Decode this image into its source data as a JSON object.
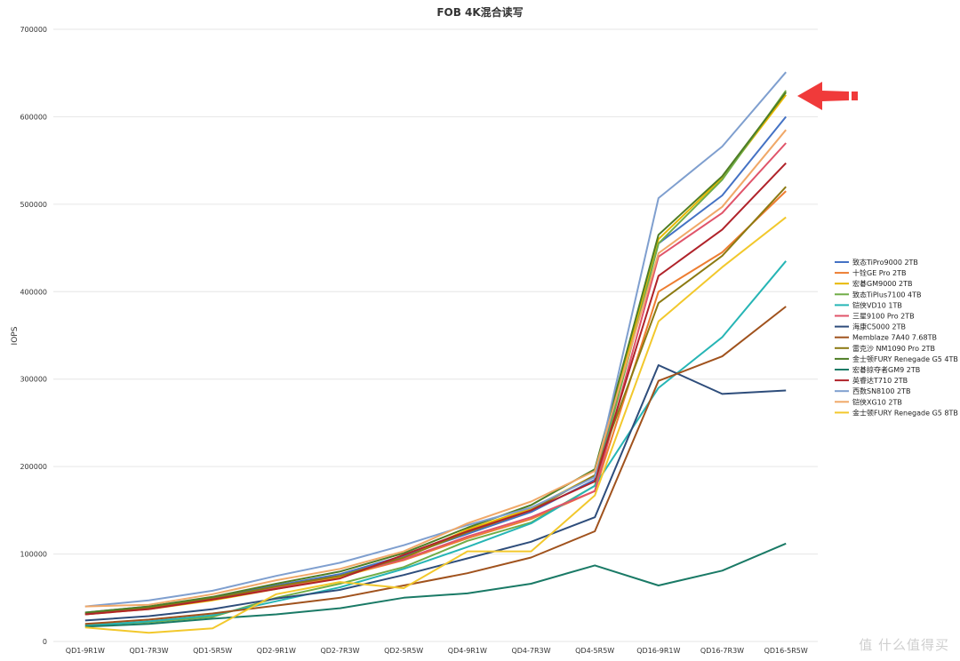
{
  "chart_data": {
    "type": "line",
    "title": "FOB 4K混合读写",
    "ylabel": "IOPS",
    "xlabel": "",
    "ylim": [
      0,
      700000
    ],
    "yticks": [
      0,
      100000,
      200000,
      300000,
      400000,
      500000,
      600000,
      700000
    ],
    "grid": true,
    "legend_position": "right",
    "categories": [
      "QD1-9R1W",
      "QD1-7R3W",
      "QD1-5R5W",
      "QD2-9R1W",
      "QD2-7R3W",
      "QD2-5R5W",
      "QD4-9R1W",
      "QD4-7R3W",
      "QD4-5R5W",
      "QD16-9R1W",
      "QD16-7R3W",
      "QD16-5R5W"
    ],
    "series": [
      {
        "name": "致态TiPro9000 2TB",
        "color": "#4472c4",
        "values": [
          33000,
          40000,
          50000,
          64000,
          77000,
          98000,
          123000,
          148000,
          185000,
          455000,
          510000,
          600000
        ]
      },
      {
        "name": "十铨GE Pro 2TB",
        "color": "#ed7d31",
        "values": [
          32000,
          38000,
          48000,
          62000,
          74000,
          93000,
          118000,
          140000,
          172000,
          400000,
          445000,
          515000
        ]
      },
      {
        "name": "宏碁GM9000 2TB",
        "color": "#e8b800",
        "values": [
          31000,
          37000,
          47000,
          60000,
          73000,
          95000,
          128000,
          152000,
          190000,
          460000,
          530000,
          625000
        ]
      },
      {
        "name": "致态TiPlus7100 4TB",
        "color": "#70ad47",
        "values": [
          19000,
          22000,
          28000,
          50000,
          66000,
          85000,
          115000,
          136000,
          178000,
          455000,
          528000,
          630000
        ]
      },
      {
        "name": "铠侠VD10 1TB",
        "color": "#26b5b5",
        "values": [
          18000,
          23000,
          30000,
          46000,
          62000,
          83000,
          108000,
          135000,
          178000,
          290000,
          348000,
          435000
        ]
      },
      {
        "name": "三星9100 Pro 2TB",
        "color": "#e0546a",
        "values": [
          32000,
          39000,
          49000,
          62000,
          75000,
          94000,
          120000,
          142000,
          172000,
          440000,
          490000,
          570000
        ]
      },
      {
        "name": "海康C5000 2TB",
        "color": "#2e4d7b",
        "values": [
          24000,
          29000,
          37000,
          49000,
          59000,
          76000,
          95000,
          114000,
          142000,
          316000,
          283000,
          287000
        ]
      },
      {
        "name": "Memblaze 7A40 7.68TB",
        "color": "#a0521d",
        "values": [
          20000,
          25000,
          32000,
          41000,
          50000,
          64000,
          78000,
          96000,
          126000,
          298000,
          326000,
          383000
        ]
      },
      {
        "name": "雷克沙 NM1090 Pro 2TB",
        "color": "#8c7a12",
        "values": [
          31000,
          38000,
          49000,
          63000,
          75000,
          96000,
          125000,
          150000,
          190000,
          387000,
          441000,
          520000
        ]
      },
      {
        "name": "金士顿FURY Renegade G5 4TB",
        "color": "#4e7d25",
        "values": [
          33000,
          40000,
          51000,
          66000,
          80000,
          101000,
          130000,
          156000,
          197000,
          465000,
          532000,
          628000
        ]
      },
      {
        "name": "宏碁掠夺者GM9 2TB",
        "color": "#1a7a66",
        "values": [
          17000,
          20000,
          26000,
          31000,
          38000,
          50000,
          55000,
          66000,
          87000,
          64000,
          81000,
          112000
        ]
      },
      {
        "name": "英睿达T710 2TB",
        "color": "#b0232a",
        "values": [
          31000,
          37000,
          48000,
          60000,
          72000,
          99000,
          126000,
          150000,
          183000,
          418000,
          471000,
          547000
        ]
      },
      {
        "name": "西数SN8100 2TB",
        "color": "#7f9fcf",
        "values": [
          40000,
          47000,
          58000,
          75000,
          90000,
          110000,
          133000,
          153000,
          188000,
          507000,
          566000,
          651000
        ]
      },
      {
        "name": "铠侠XG10 2TB",
        "color": "#f0a868",
        "values": [
          40000,
          42000,
          54000,
          70000,
          83000,
          103000,
          135000,
          160000,
          195000,
          444000,
          497000,
          585000
        ]
      },
      {
        "name": "金士顿FURY Renegade G5 8TB",
        "color": "#f2c82c",
        "values": [
          16000,
          10000,
          15000,
          54000,
          68000,
          61000,
          103000,
          103000,
          167000,
          366000,
          428000,
          485000
        ]
      }
    ]
  },
  "watermark": "值 什么值得买"
}
